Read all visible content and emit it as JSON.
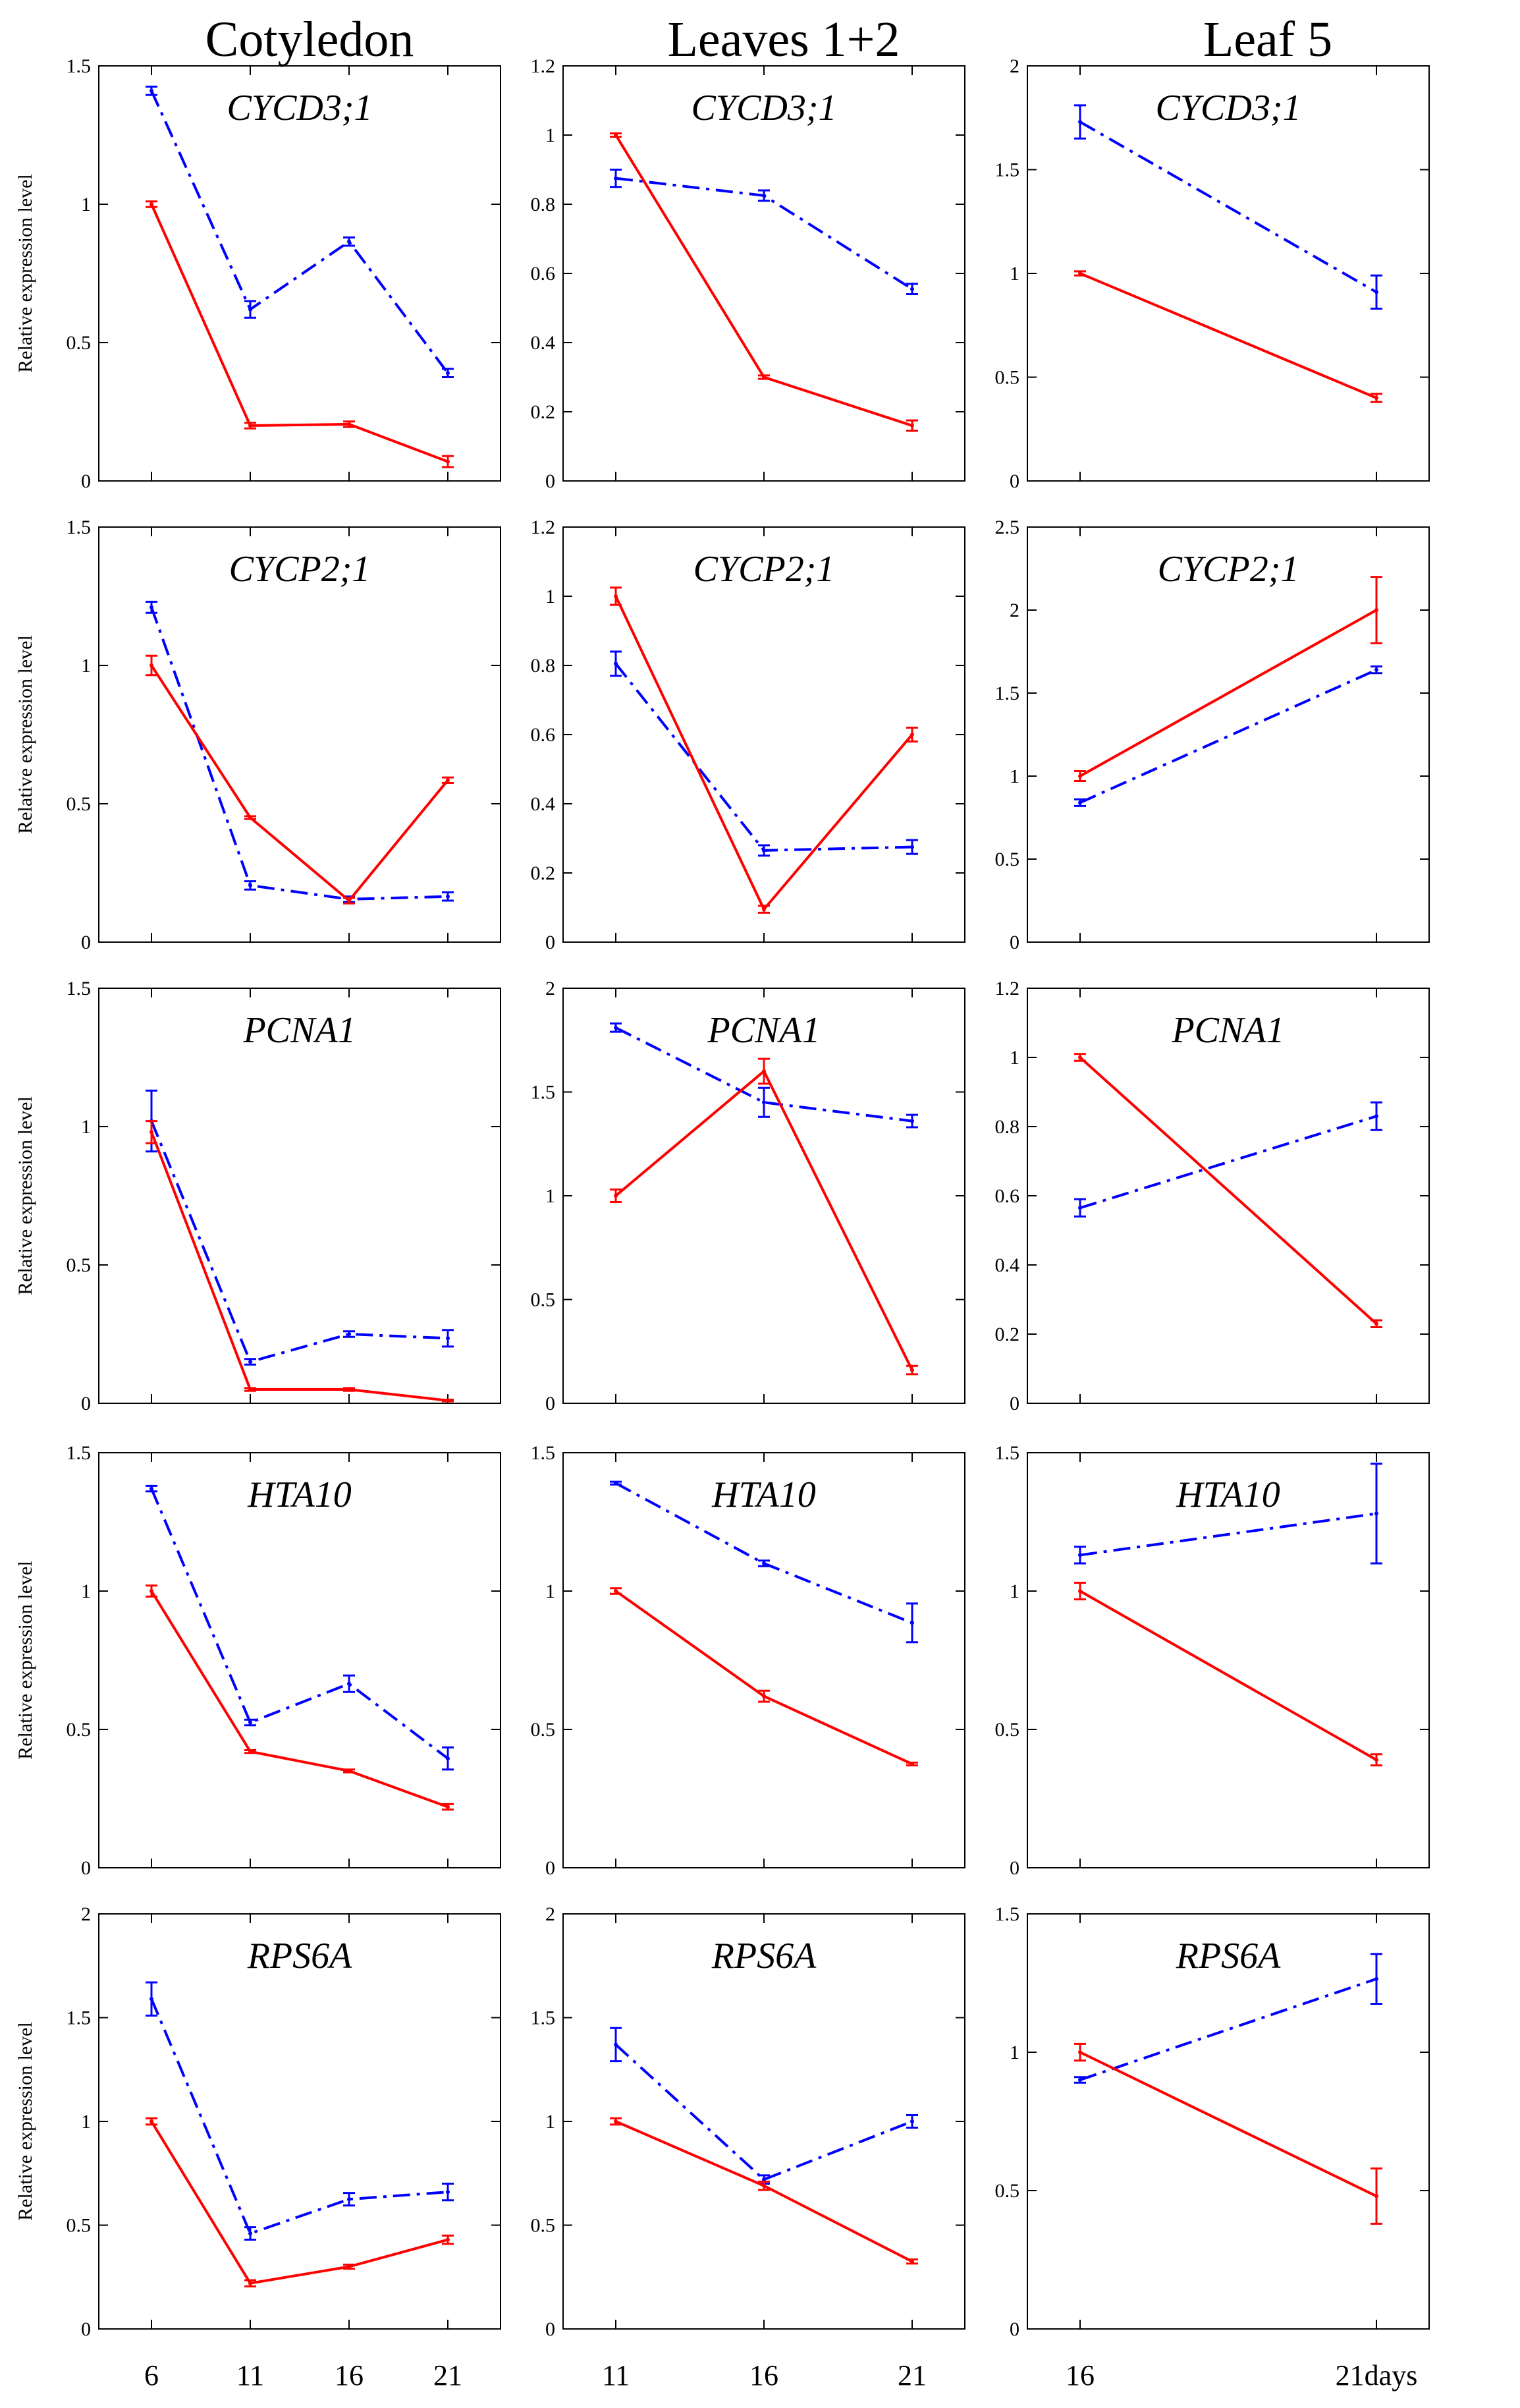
{
  "figure": {
    "columns": [
      "Cotyledon",
      "Leaves 1+2",
      "Leaf 5"
    ],
    "ylabel": "Relative expression level",
    "x_tick_labels": [
      [
        "6",
        "11",
        "16",
        "21"
      ],
      [
        "11",
        "16",
        "21"
      ],
      [
        "16",
        "21days"
      ]
    ],
    "series_colors": {
      "solid": "#ff0000",
      "dashdot": "#0000ff"
    }
  },
  "chart_data": [
    {
      "type": "line",
      "column": "Cotyledon",
      "gene": "CYCD3;1",
      "x": [
        6,
        11,
        16,
        21
      ],
      "ylim": [
        0,
        1.5
      ],
      "yticks": [
        0,
        0.5,
        1,
        1.5
      ],
      "series": [
        {
          "name": "solid",
          "style": "solid",
          "values": [
            1.0,
            0.2,
            0.205,
            0.07
          ],
          "errors": [
            0.01,
            0.01,
            0.01,
            0.02
          ]
        },
        {
          "name": "dashdot",
          "style": "dashdot",
          "values": [
            1.41,
            0.62,
            0.865,
            0.39
          ],
          "errors": [
            0.015,
            0.03,
            0.015,
            0.015
          ]
        }
      ]
    },
    {
      "type": "line",
      "column": "Leaves 1+2",
      "gene": "CYCD3;1",
      "x": [
        11,
        16,
        21
      ],
      "ylim": [
        0,
        1.2
      ],
      "yticks": [
        0,
        0.2,
        0.4,
        0.6,
        0.8,
        1,
        1.2
      ],
      "series": [
        {
          "name": "solid",
          "style": "solid",
          "values": [
            1.0,
            0.3,
            0.16
          ],
          "errors": [
            0.005,
            0.005,
            0.015
          ]
        },
        {
          "name": "dashdot",
          "style": "dashdot",
          "values": [
            0.875,
            0.825,
            0.555
          ],
          "errors": [
            0.025,
            0.015,
            0.015
          ]
        }
      ]
    },
    {
      "type": "line",
      "column": "Leaf 5",
      "gene": "CYCD3;1",
      "x": [
        16,
        21
      ],
      "ylim": [
        0,
        2
      ],
      "yticks": [
        0,
        0.5,
        1,
        1.5,
        2
      ],
      "series": [
        {
          "name": "solid",
          "style": "solid",
          "values": [
            1.0,
            0.4
          ],
          "errors": [
            0.01,
            0.02
          ]
        },
        {
          "name": "dashdot",
          "style": "dashdot",
          "values": [
            1.73,
            0.91
          ],
          "errors": [
            0.08,
            0.08
          ]
        }
      ]
    },
    {
      "type": "line",
      "column": "Cotyledon",
      "gene": "CYCP2;1",
      "x": [
        6,
        11,
        16,
        21
      ],
      "ylim": [
        0,
        1.5
      ],
      "yticks": [
        0,
        0.5,
        1,
        1.5
      ],
      "series": [
        {
          "name": "solid",
          "style": "solid",
          "values": [
            1.0,
            0.45,
            0.15,
            0.585
          ],
          "errors": [
            0.035,
            0.005,
            0.01,
            0.01
          ]
        },
        {
          "name": "dashdot",
          "style": "dashdot",
          "values": [
            1.21,
            0.205,
            0.155,
            0.165
          ],
          "errors": [
            0.02,
            0.015,
            0.01,
            0.015
          ]
        }
      ]
    },
    {
      "type": "line",
      "column": "Leaves 1+2",
      "gene": "CYCP2;1",
      "x": [
        11,
        16,
        21
      ],
      "ylim": [
        0,
        1.2
      ],
      "yticks": [
        0,
        0.2,
        0.4,
        0.6,
        0.8,
        1,
        1.2
      ],
      "series": [
        {
          "name": "solid",
          "style": "solid",
          "values": [
            1.0,
            0.095,
            0.6
          ],
          "errors": [
            0.025,
            0.01,
            0.02
          ]
        },
        {
          "name": "dashdot",
          "style": "dashdot",
          "values": [
            0.805,
            0.265,
            0.275
          ],
          "errors": [
            0.035,
            0.015,
            0.02
          ]
        }
      ]
    },
    {
      "type": "line",
      "column": "Leaf 5",
      "gene": "CYCP2;1",
      "x": [
        16,
        21
      ],
      "ylim": [
        0,
        2.5
      ],
      "yticks": [
        0,
        0.5,
        1,
        1.5,
        2,
        2.5
      ],
      "series": [
        {
          "name": "solid",
          "style": "solid",
          "values": [
            1.0,
            2.0
          ],
          "errors": [
            0.03,
            0.2
          ]
        },
        {
          "name": "dashdot",
          "style": "dashdot",
          "values": [
            0.84,
            1.64
          ],
          "errors": [
            0.02,
            0.02
          ]
        }
      ]
    },
    {
      "type": "line",
      "column": "Cotyledon",
      "gene": "PCNA1",
      "x": [
        6,
        11,
        16,
        21
      ],
      "ylim": [
        0,
        1.5
      ],
      "yticks": [
        0,
        0.5,
        1,
        1.5
      ],
      "series": [
        {
          "name": "solid",
          "style": "solid",
          "values": [
            0.98,
            0.05,
            0.05,
            0.01
          ],
          "errors": [
            0.04,
            0.005,
            0.005,
            0.003
          ]
        },
        {
          "name": "dashdot",
          "style": "dashdot",
          "values": [
            1.02,
            0.15,
            0.25,
            0.235
          ],
          "errors": [
            0.11,
            0.01,
            0.01,
            0.03
          ]
        }
      ]
    },
    {
      "type": "line",
      "column": "Leaves 1+2",
      "gene": "PCNA1",
      "x": [
        11,
        16,
        21
      ],
      "ylim": [
        0,
        2
      ],
      "yticks": [
        0,
        0.5,
        1,
        1.5,
        2
      ],
      "series": [
        {
          "name": "solid",
          "style": "solid",
          "values": [
            1.0,
            1.6,
            0.16
          ],
          "errors": [
            0.03,
            0.06,
            0.02
          ]
        },
        {
          "name": "dashdot",
          "style": "dashdot",
          "values": [
            1.81,
            1.45,
            1.36
          ],
          "errors": [
            0.02,
            0.07,
            0.03
          ]
        }
      ]
    },
    {
      "type": "line",
      "column": "Leaf 5",
      "gene": "PCNA1",
      "x": [
        16,
        21
      ],
      "ylim": [
        0,
        1.2
      ],
      "yticks": [
        0,
        0.2,
        0.4,
        0.6,
        0.8,
        1,
        1.2
      ],
      "series": [
        {
          "name": "solid",
          "style": "solid",
          "values": [
            1.0,
            0.23
          ],
          "errors": [
            0.01,
            0.01
          ]
        },
        {
          "name": "dashdot",
          "style": "dashdot",
          "values": [
            0.565,
            0.83
          ],
          "errors": [
            0.025,
            0.04
          ]
        }
      ]
    },
    {
      "type": "line",
      "column": "Cotyledon",
      "gene": "HTA10",
      "x": [
        6,
        11,
        16,
        21
      ],
      "ylim": [
        0,
        1.5
      ],
      "yticks": [
        0,
        0.5,
        1,
        1.5
      ],
      "series": [
        {
          "name": "solid",
          "style": "solid",
          "values": [
            1.0,
            0.42,
            0.35,
            0.22
          ],
          "errors": [
            0.02,
            0.005,
            0.005,
            0.01
          ]
        },
        {
          "name": "dashdot",
          "style": "dashdot",
          "values": [
            1.37,
            0.525,
            0.665,
            0.395
          ],
          "errors": [
            0.01,
            0.01,
            0.03,
            0.04
          ]
        }
      ]
    },
    {
      "type": "line",
      "column": "Leaves 1+2",
      "gene": "HTA10",
      "x": [
        11,
        16,
        21
      ],
      "ylim": [
        0,
        1.5
      ],
      "yticks": [
        0,
        0.5,
        1,
        1.5
      ],
      "series": [
        {
          "name": "solid",
          "style": "solid",
          "values": [
            1.0,
            0.62,
            0.375
          ],
          "errors": [
            0.01,
            0.02,
            0.005
          ]
        },
        {
          "name": "dashdot",
          "style": "dashdot",
          "values": [
            1.39,
            1.1,
            0.885
          ],
          "errors": [
            0.005,
            0.01,
            0.07
          ]
        }
      ]
    },
    {
      "type": "line",
      "column": "Leaf 5",
      "gene": "HTA10",
      "x": [
        16,
        21
      ],
      "ylim": [
        0,
        1.5
      ],
      "yticks": [
        0,
        0.5,
        1,
        1.5
      ],
      "series": [
        {
          "name": "solid",
          "style": "solid",
          "values": [
            1.0,
            0.39
          ],
          "errors": [
            0.03,
            0.02
          ]
        },
        {
          "name": "dashdot",
          "style": "dashdot",
          "values": [
            1.13,
            1.28
          ],
          "errors": [
            0.03,
            0.18
          ]
        }
      ]
    },
    {
      "type": "line",
      "column": "Cotyledon",
      "gene": "RPS6A",
      "x": [
        6,
        11,
        16,
        21
      ],
      "ylim": [
        0,
        2
      ],
      "yticks": [
        0,
        0.5,
        1,
        1.5,
        2
      ],
      "series": [
        {
          "name": "solid",
          "style": "solid",
          "values": [
            1.0,
            0.22,
            0.3,
            0.43
          ],
          "errors": [
            0.015,
            0.015,
            0.01,
            0.02
          ]
        },
        {
          "name": "dashdot",
          "style": "dashdot",
          "values": [
            1.59,
            0.46,
            0.625,
            0.66
          ],
          "errors": [
            0.08,
            0.03,
            0.03,
            0.04
          ]
        }
      ]
    },
    {
      "type": "line",
      "column": "Leaves 1+2",
      "gene": "RPS6A",
      "x": [
        11,
        16,
        21
      ],
      "ylim": [
        0,
        2
      ],
      "yticks": [
        0,
        0.5,
        1,
        1.5,
        2
      ],
      "series": [
        {
          "name": "solid",
          "style": "solid",
          "values": [
            1.0,
            0.69,
            0.325
          ],
          "errors": [
            0.015,
            0.02,
            0.01
          ]
        },
        {
          "name": "dashdot",
          "style": "dashdot",
          "values": [
            1.37,
            0.72,
            1.0
          ],
          "errors": [
            0.08,
            0.02,
            0.03
          ]
        }
      ]
    },
    {
      "type": "line",
      "column": "Leaf 5",
      "gene": "RPS6A",
      "x": [
        16,
        21
      ],
      "ylim": [
        0,
        1.5
      ],
      "yticks": [
        0,
        0.5,
        1,
        1.5
      ],
      "series": [
        {
          "name": "solid",
          "style": "solid",
          "values": [
            1.0,
            0.48
          ],
          "errors": [
            0.03,
            0.1
          ]
        },
        {
          "name": "dashdot",
          "style": "dashdot",
          "values": [
            0.9,
            1.265
          ],
          "errors": [
            0.01,
            0.09
          ]
        }
      ]
    }
  ]
}
